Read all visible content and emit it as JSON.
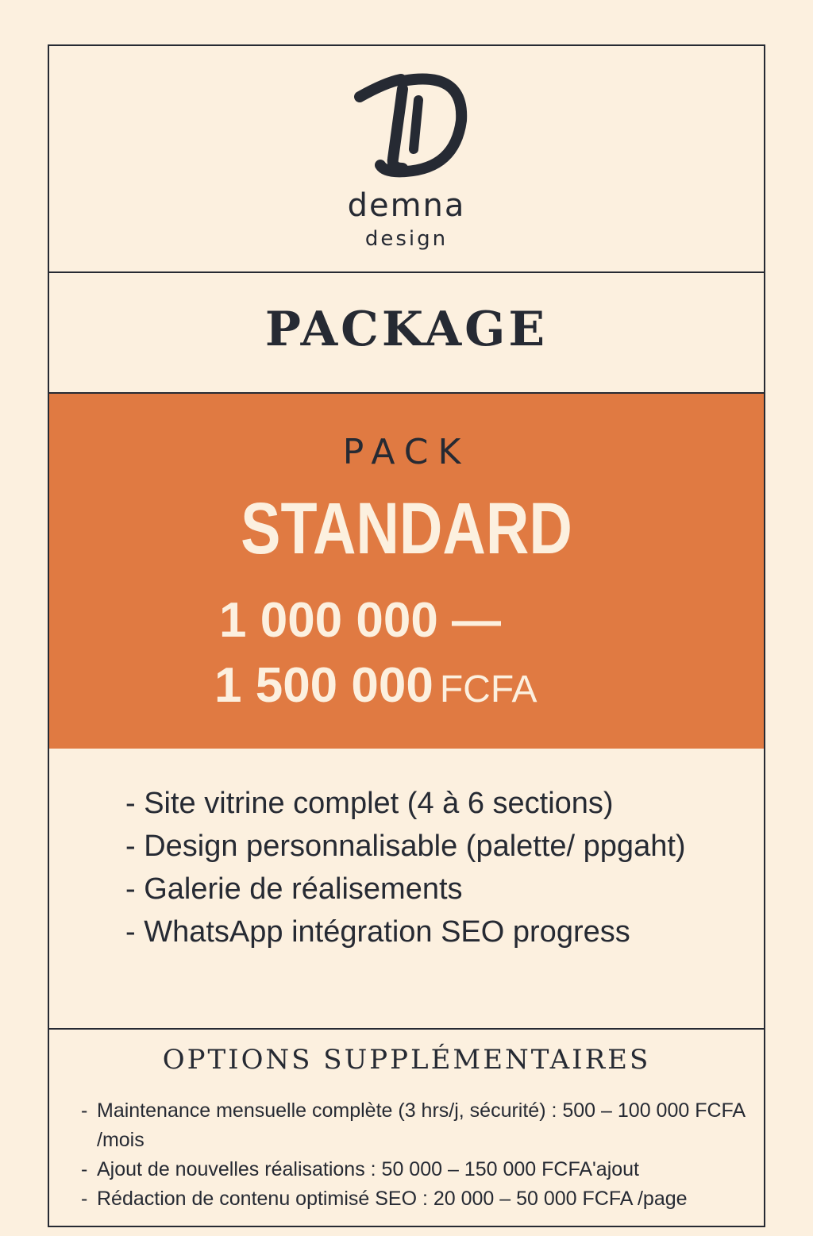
{
  "brand": {
    "logo_letter": "D",
    "name": "demna",
    "subtitle": "design"
  },
  "package_title": "PACKAGE",
  "offer": {
    "label": "PACK",
    "name": "STANDARD",
    "price_min": "1 000 000 —",
    "price_max": "1 500 000",
    "currency": "FCFA",
    "background_color": "#e07a42"
  },
  "features": [
    "- Site vitrine complet (4 à 6 sections)",
    "- Design personnalisable (palette/ ppgaht)",
    "- Galerie de réalisements",
    "- WhatsApp intégration SEO progress"
  ],
  "options": {
    "title": "OPTIONS SUPPLÉMENTAIRES",
    "items": [
      "Maintenance mensuelle complète (3 hrs/j, sécurité) : 500 – 100 000 FCFA /mois",
      "Ajout de nouvelles réalisations  : 50 000 – 150 000 FCFA'ajout",
      "Rédaction de contenu optimisé SEO : 20 000 – 50 000 FCFA /page"
    ]
  },
  "colors": {
    "background": "#fcf0df",
    "text": "#262a33",
    "accent": "#e07a42"
  }
}
